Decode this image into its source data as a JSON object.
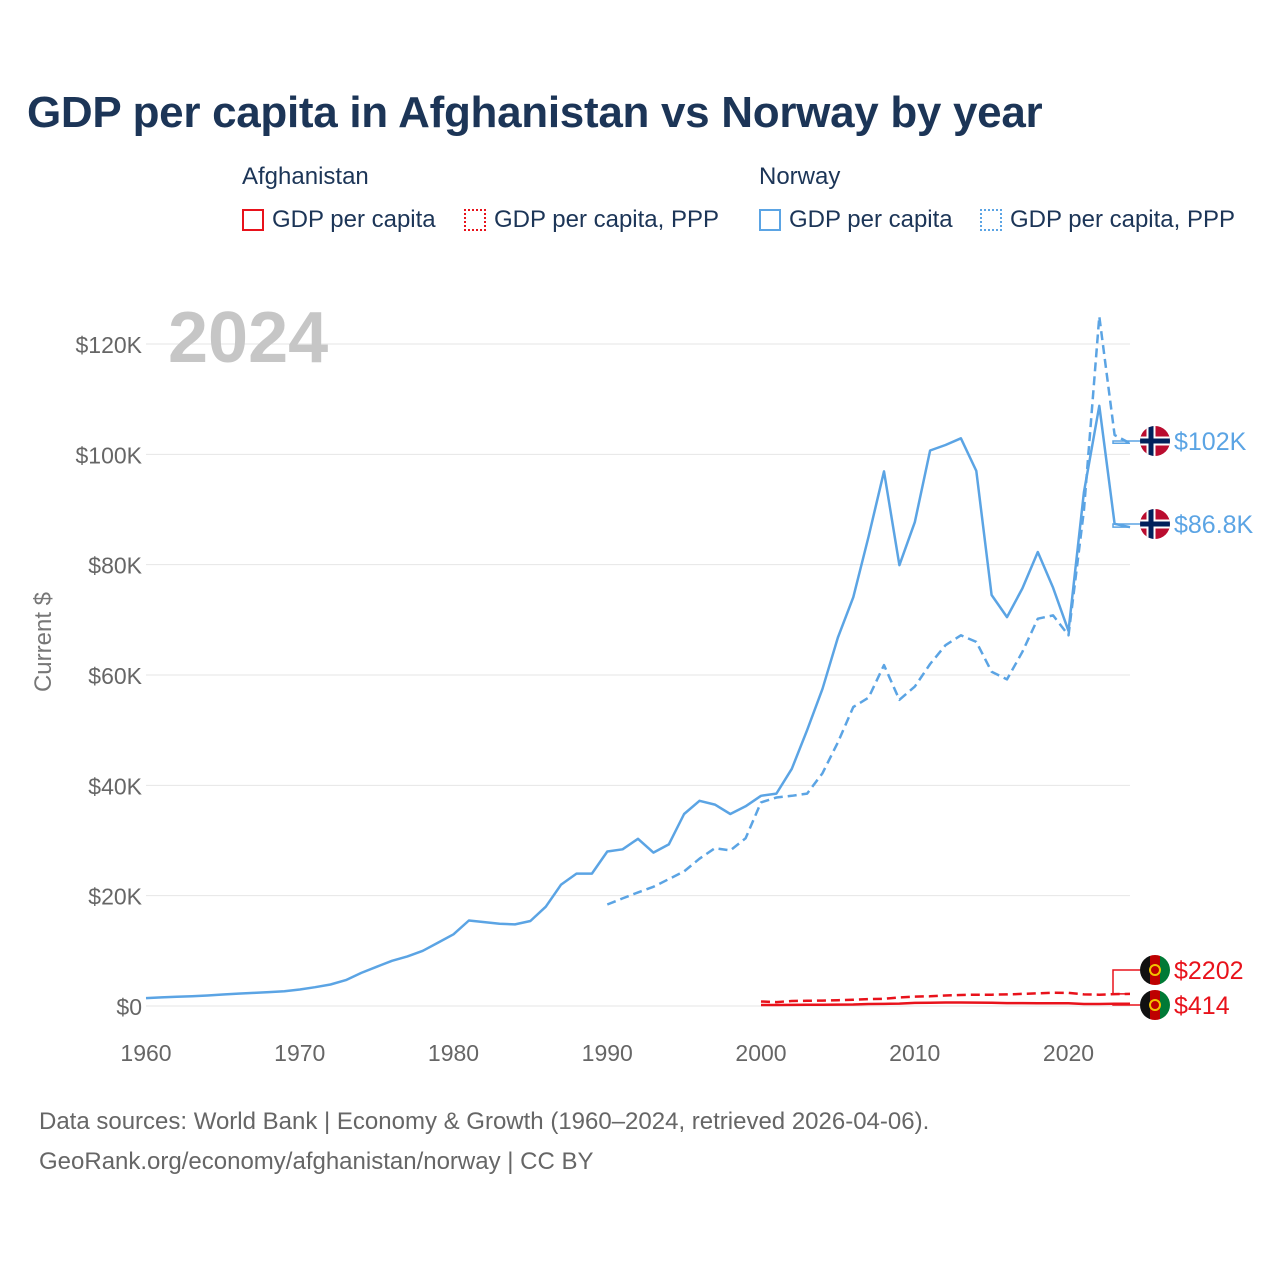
{
  "title": "GDP per capita in Afghanistan vs Norway by year",
  "legend": {
    "afghanistan": {
      "group": "Afghanistan",
      "nominal": "GDP per capita",
      "ppp": "GDP per capita, PPP",
      "color": "#e8121b"
    },
    "norway": {
      "group": "Norway",
      "nominal": "GDP per capita",
      "ppp": "GDP per capita, PPP",
      "color": "#5ba4e4"
    }
  },
  "year_label": "2024",
  "footer": {
    "line1": "Data sources: World Bank | Economy & Growth (1960–2024, retrieved 2026-04-06).",
    "line2": "GeoRank.org/economy/afghanistan/norway | CC BY"
  },
  "chart_data": {
    "type": "line",
    "title": "GDP per capita in Afghanistan vs Norway by year",
    "xlabel": "",
    "ylabel": "Current $",
    "xlim": [
      1960,
      2024
    ],
    "ylim": [
      0,
      130000
    ],
    "x_ticks": [
      1960,
      1970,
      1980,
      1990,
      2000,
      2010,
      2020
    ],
    "y_ticks": [
      {
        "value": 0,
        "label": "$0"
      },
      {
        "value": 20000,
        "label": "$20K"
      },
      {
        "value": 40000,
        "label": "$40K"
      },
      {
        "value": 60000,
        "label": "$60K"
      },
      {
        "value": 80000,
        "label": "$80K"
      },
      {
        "value": 100000,
        "label": "$100K"
      },
      {
        "value": 120000,
        "label": "$120K"
      }
    ],
    "grid": true,
    "series": [
      {
        "name": "Norway GDP per capita",
        "country": "Norway",
        "style": "solid",
        "color": "#5ba4e4",
        "end_label": "$86.8K",
        "x": [
          1960,
          1961,
          1962,
          1963,
          1964,
          1965,
          1966,
          1967,
          1968,
          1969,
          1970,
          1971,
          1972,
          1973,
          1974,
          1975,
          1976,
          1977,
          1978,
          1979,
          1980,
          1981,
          1982,
          1983,
          1984,
          1985,
          1986,
          1987,
          1988,
          1989,
          1990,
          1991,
          1992,
          1993,
          1994,
          1995,
          1996,
          1997,
          1998,
          1999,
          2000,
          2001,
          2002,
          2003,
          2004,
          2005,
          2006,
          2007,
          2008,
          2009,
          2010,
          2011,
          2012,
          2013,
          2014,
          2015,
          2016,
          2017,
          2018,
          2019,
          2020,
          2021,
          2022,
          2023,
          2024
        ],
        "values": [
          1440,
          1560,
          1670,
          1770,
          1900,
          2080,
          2240,
          2380,
          2520,
          2680,
          3000,
          3400,
          3900,
          4700,
          6000,
          7100,
          8200,
          9000,
          10000,
          11500,
          13000,
          15500,
          15200,
          14900,
          14800,
          15400,
          18000,
          22000,
          24000,
          24000,
          28000,
          28400,
          30300,
          27800,
          29300,
          34800,
          37200,
          36500,
          34800,
          36200,
          38100,
          38500,
          43000,
          50000,
          57500,
          66800,
          74100,
          85100,
          96900,
          79900,
          87700,
          100700,
          101700,
          102900,
          97000,
          74500,
          70500,
          75700,
          82300,
          75800,
          68000,
          93100,
          108800,
          87400,
          86800
        ]
      },
      {
        "name": "Norway GDP per capita, PPP",
        "country": "Norway",
        "style": "dashed",
        "color": "#5ba4e4",
        "end_label": "$102K",
        "x": [
          1990,
          1991,
          1992,
          1993,
          1994,
          1995,
          1996,
          1997,
          1998,
          1999,
          2000,
          2001,
          2002,
          2003,
          2004,
          2005,
          2006,
          2007,
          2008,
          2009,
          2010,
          2011,
          2012,
          2013,
          2014,
          2015,
          2016,
          2017,
          2018,
          2019,
          2020,
          2021,
          2022,
          2023,
          2024
        ],
        "values": [
          18400,
          19500,
          20600,
          21600,
          23000,
          24400,
          26700,
          28600,
          28200,
          30400,
          36900,
          37800,
          38100,
          38500,
          42200,
          47800,
          54200,
          55900,
          61800,
          55500,
          57900,
          62000,
          65400,
          67200,
          66000,
          60600,
          59200,
          64200,
          70200,
          70800,
          67200,
          89800,
          125000,
          103500,
          102000
        ]
      },
      {
        "name": "Afghanistan GDP per capita",
        "country": "Afghanistan",
        "style": "solid",
        "color": "#e8121b",
        "end_label": "$414",
        "x": [
          2000,
          2001,
          2002,
          2003,
          2004,
          2005,
          2006,
          2007,
          2008,
          2009,
          2010,
          2011,
          2012,
          2013,
          2014,
          2015,
          2016,
          2017,
          2018,
          2019,
          2020,
          2021,
          2022,
          2023,
          2024
        ],
        "values": [
          180,
          185,
          200,
          220,
          230,
          260,
          270,
          360,
          380,
          440,
          560,
          600,
          640,
          630,
          610,
          580,
          520,
          530,
          500,
          500,
          510,
          370,
          360,
          410,
          414
        ]
      },
      {
        "name": "Afghanistan GDP per capita, PPP",
        "country": "Afghanistan",
        "style": "dashed",
        "color": "#e8121b",
        "end_label": "$2202",
        "x": [
          2000,
          2001,
          2002,
          2003,
          2004,
          2005,
          2006,
          2007,
          2008,
          2009,
          2010,
          2011,
          2012,
          2013,
          2014,
          2015,
          2016,
          2017,
          2018,
          2019,
          2020,
          2021,
          2022,
          2023,
          2024
        ],
        "values": [
          820,
          700,
          900,
          950,
          980,
          1050,
          1120,
          1250,
          1300,
          1550,
          1700,
          1750,
          1900,
          2000,
          2050,
          2050,
          2100,
          2200,
          2300,
          2400,
          2380,
          2100,
          2050,
          2150,
          2202
        ]
      }
    ]
  }
}
